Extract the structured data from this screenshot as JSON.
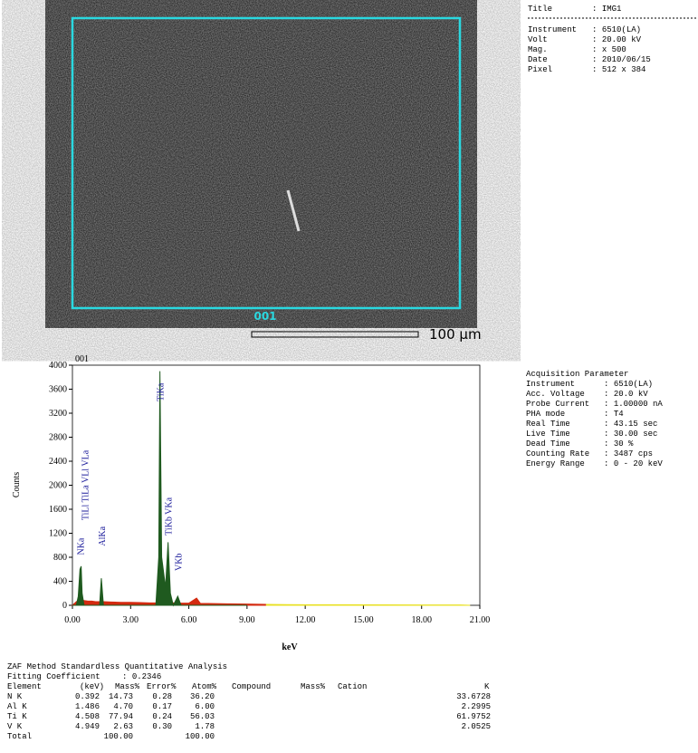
{
  "image": {
    "region_label": "001",
    "scale_label": "100 µm"
  },
  "image_info": [
    [
      "Title",
      "IMG1"
    ],
    [
      "Instrument",
      "6510(LA)"
    ],
    [
      "Volt",
      "20.00 kV"
    ],
    [
      "Mag.",
      "x 500"
    ],
    [
      "Date",
      "2010/06/15"
    ],
    [
      "Pixel",
      "512 x 384"
    ]
  ],
  "chart_data": {
    "type": "area",
    "subtitle": "001",
    "xlabel": "keV",
    "ylabel": "Counts",
    "x": [
      0,
      0.2,
      0.3,
      0.39,
      0.45,
      0.5,
      0.6,
      0.8,
      1.0,
      1.2,
      1.4,
      1.49,
      1.6,
      2,
      2.5,
      3,
      3.5,
      4,
      4.3,
      4.45,
      4.51,
      4.6,
      4.8,
      4.93,
      5.05,
      5.2,
      5.43,
      5.6,
      6,
      6.4,
      6.6,
      7,
      8,
      9,
      10,
      11,
      12,
      14,
      16,
      18,
      20,
      20.5
    ],
    "series": [
      {
        "color": "#d42a10",
        "values": [
          0,
          60,
          80,
          90,
          90,
          90,
          80,
          70,
          70,
          60,
          60,
          60,
          60,
          55,
          50,
          50,
          45,
          40,
          40,
          40,
          40,
          40,
          40,
          40,
          40,
          40,
          40,
          35,
          35,
          120,
          30,
          30,
          25,
          20,
          15,
          null,
          null,
          null,
          null,
          null,
          null,
          null
        ]
      },
      {
        "color": "#e8e020",
        "values": [
          null,
          null,
          null,
          null,
          null,
          null,
          null,
          null,
          null,
          null,
          null,
          null,
          null,
          null,
          null,
          null,
          null,
          null,
          null,
          null,
          null,
          null,
          null,
          null,
          null,
          null,
          null,
          null,
          null,
          null,
          null,
          null,
          null,
          null,
          15,
          12,
          10,
          10,
          8,
          6,
          5,
          0
        ]
      },
      {
        "color": "#1f5a1f",
        "values": [
          0,
          0,
          150,
          600,
          650,
          200,
          0,
          0,
          0,
          0,
          0,
          450,
          0,
          0,
          0,
          0,
          0,
          0,
          0,
          800,
          3900,
          800,
          300,
          1050,
          200,
          0,
          150,
          0,
          0,
          0,
          0,
          0,
          0,
          0,
          null,
          null,
          null,
          null,
          null,
          null,
          null,
          null
        ]
      }
    ],
    "xlim": [
      0,
      21
    ],
    "ylim": [
      0,
      4000
    ],
    "xticks": [
      {
        "value": 0,
        "label": "0.00"
      },
      {
        "value": 3,
        "label": "3.00"
      },
      {
        "value": 6,
        "label": "6.00"
      },
      {
        "value": 9,
        "label": "9.00"
      },
      {
        "value": 12,
        "label": "12.00"
      },
      {
        "value": 15,
        "label": "15.00"
      },
      {
        "value": 18,
        "label": "18.00"
      },
      {
        "value": 21,
        "label": "21.00"
      }
    ],
    "yticks": [
      0,
      400,
      800,
      1200,
      1600,
      2000,
      2400,
      2800,
      3200,
      3600,
      4000
    ],
    "annotations": [
      {
        "text": "NKa",
        "x": 0.39,
        "y": 980
      },
      {
        "text": "TiLl TiLa VLl VLa",
        "x": 0.62,
        "y": 2000
      },
      {
        "text": "AlKa",
        "x": 1.49,
        "y": 1150
      },
      {
        "text": "TiKa",
        "x": 4.51,
        "y": 3550
      },
      {
        "text": "TiKb VKa",
        "x": 4.93,
        "y": 1480
      },
      {
        "text": "VKb",
        "x": 5.43,
        "y": 720
      }
    ]
  },
  "acquisition": {
    "title": "Acquisition Parameter",
    "rows": [
      [
        "Instrument",
        "6510(LA)"
      ],
      [
        "Acc. Voltage",
        "20.0 kV"
      ],
      [
        "Probe Current",
        "1.00000 nA"
      ],
      [
        "PHA mode",
        "T4"
      ],
      [
        "Real Time",
        "43.15 sec"
      ],
      [
        "Live Time",
        "30.00 sec"
      ],
      [
        "Dead Time",
        "30 %"
      ],
      [
        "Counting Rate",
        "3487 cps"
      ],
      [
        "Energy Range",
        "0 - 20 keV"
      ]
    ]
  },
  "analysis": {
    "title": "ZAF Method Standardless Quantitative Analysis",
    "fitting_label": "Fitting Coefficient",
    "fitting_value": "0.2346",
    "headers": [
      "Element",
      "(keV)",
      "Mass%",
      "Error%",
      "Atom%",
      "Compound",
      "Mass%",
      "Cation",
      "K"
    ],
    "rows": [
      [
        "N K",
        "0.392",
        "14.73",
        "0.28",
        "36.20",
        "33.6728"
      ],
      [
        "Al K",
        "1.486",
        "4.70",
        "0.17",
        "6.00",
        "2.2995"
      ],
      [
        "Ti K",
        "4.508",
        "77.94",
        "0.24",
        "56.03",
        "61.9752"
      ],
      [
        "V K",
        "4.949",
        "2.63",
        "0.30",
        "1.78",
        "2.0525"
      ]
    ],
    "total": {
      "label": "Total",
      "mass": "100.00",
      "atom": "100.00"
    }
  }
}
